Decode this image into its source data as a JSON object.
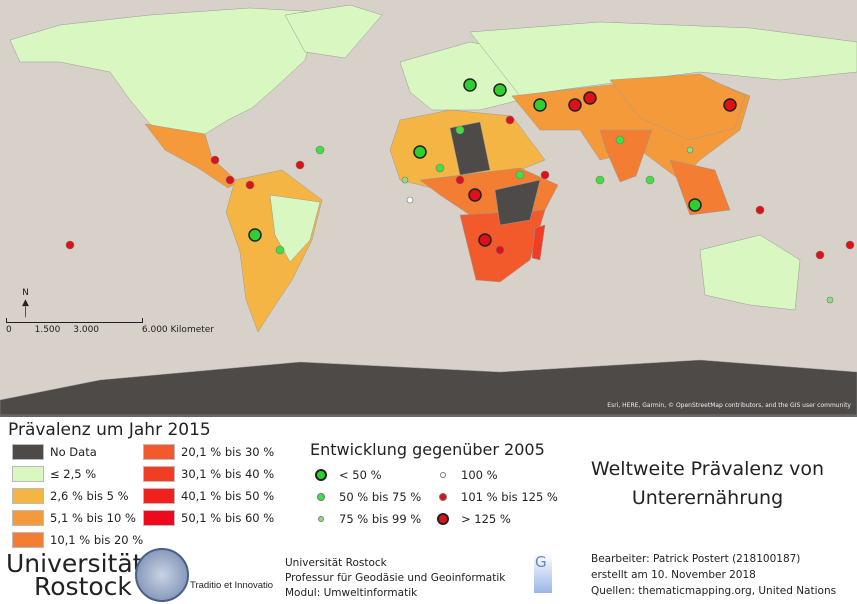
{
  "map": {
    "attribution": "Esri, HERE, Garmin, © OpenStreetMap contributors, and the GIS user community",
    "scale_bar": {
      "ticks": [
        "0",
        "1.500",
        "3.000",
        "6.000"
      ],
      "unit": "Kilometer"
    },
    "north_arrow": "N",
    "sea_color": "#d8d1c9"
  },
  "legend_prevalence": {
    "title": "Prävalenz um Jahr 2015",
    "items": [
      {
        "label": "No Data",
        "color": "#4e4a48"
      },
      {
        "label": "≤ 2,5 %",
        "color": "#d9f7c0"
      },
      {
        "label": "2,6 % bis 5 %",
        "color": "#f5b544"
      },
      {
        "label": "5,1 % bis 10 %",
        "color": "#f59a3a"
      },
      {
        "label": "10,1 % bis 20 %",
        "color": "#f27d33"
      },
      {
        "label": "20,1 % bis 30 %",
        "color": "#f25a2b"
      },
      {
        "label": "30,1 % bis 40 %",
        "color": "#f23d25"
      },
      {
        "label": "40,1 % bis 50 %",
        "color": "#f2201f"
      },
      {
        "label": "50,1 % bis 60 %",
        "color": "#ee0a1c"
      }
    ]
  },
  "legend_development": {
    "title": "Entwicklung gegenüber 2005",
    "items": [
      {
        "label": "< 50 %",
        "color": "#2fcf2f",
        "size": "large"
      },
      {
        "label": "50 % bis 75 %",
        "color": "#3fe03f",
        "size": "medium"
      },
      {
        "label": "75 % bis 99 %",
        "color": "#8de07a",
        "size": "small"
      },
      {
        "label": "100 %",
        "color": "#ffffff",
        "size": "small"
      },
      {
        "label": "101 % bis 125 %",
        "color": "#e0101a",
        "size": "medium"
      },
      {
        "label": "> 125 %",
        "color": "#e0101a",
        "size": "large"
      }
    ]
  },
  "title": {
    "line1": "Weltweite Prävalenz von",
    "line2": "Unterernährung"
  },
  "logo": {
    "line1": "Universität",
    "line2": "Rostock",
    "motto": "Traditio et Innovatio"
  },
  "institution": {
    "line1": "Universität Rostock",
    "line2": "Professur für Geodäsie und Geoinformatik",
    "line3": "Modul: Umweltinformatik"
  },
  "credits": {
    "author": "Bearbeiter: Patrick Postert (218100187)",
    "date": "erstellt am 10. November 2018",
    "sources": "Quellen: thematicmapping.org, United Nations"
  }
}
